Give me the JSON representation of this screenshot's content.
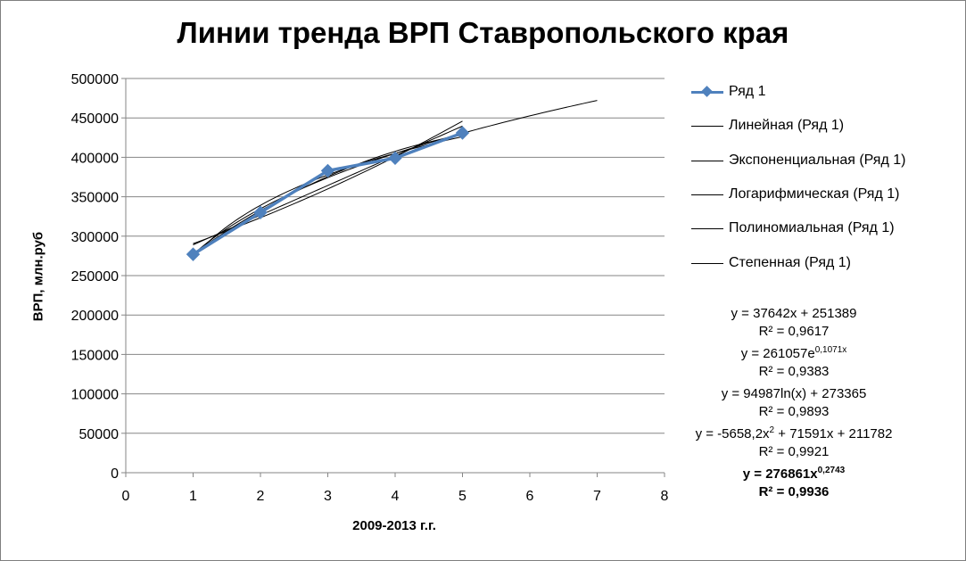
{
  "chart_data": {
    "type": "line",
    "title": "Линии тренда ВРП Ставропольского края",
    "xlabel": "2009-2013 г.г.",
    "ylabel": "ВРП, млн.руб",
    "xlim": [
      0,
      8
    ],
    "ylim": [
      0,
      500000
    ],
    "x_ticks": [
      "0",
      "1",
      "2",
      "3",
      "4",
      "5",
      "6",
      "7",
      "8"
    ],
    "y_ticks": [
      "0",
      "50000",
      "100000",
      "150000",
      "200000",
      "250000",
      "300000",
      "350000",
      "400000",
      "450000",
      "500000"
    ],
    "grid": "horizontal",
    "legend_position": "right",
    "series": [
      {
        "name": "Ряд 1",
        "x": [
          1,
          2,
          3,
          4,
          5
        ],
        "values": [
          277000,
          330000,
          383000,
          399000,
          431000
        ],
        "color": "#4f81bd",
        "marker": "diamond"
      }
    ],
    "trendlines": [
      {
        "name": "Линейная (Ряд 1)",
        "kind": "linear",
        "x_range": [
          1,
          5
        ],
        "equation": "y = 37642x + 251389",
        "r2": "R² = 0,9617"
      },
      {
        "name": "Экспоненциальная (Ряд 1)",
        "kind": "exponential",
        "x_range": [
          1,
          5
        ],
        "equation_main": "y = 261057e",
        "equation_sup": "0,1071x",
        "r2": "R² = 0,9383"
      },
      {
        "name": "Логарифмическая (Ряд 1)",
        "kind": "logarithmic",
        "x_range": [
          1,
          5
        ],
        "equation": "y = 94987ln(x) + 273365",
        "r2": "R² = 0,9893"
      },
      {
        "name": "Полиномиальная (Ряд 1)",
        "kind": "polynomial",
        "x_range": [
          1,
          5
        ],
        "equation_a": "y = -5658,2x",
        "equation_sup": "2",
        "equation_b": " + 71591x + 211782",
        "r2": "R² = 0,9921"
      },
      {
        "name": "Степенная (Ряд 1)",
        "kind": "power",
        "x_range": [
          1,
          7
        ],
        "equation_main": "y = 276861x",
        "equation_sup": "0,2743",
        "r2": "R² = 0,9936"
      }
    ]
  }
}
